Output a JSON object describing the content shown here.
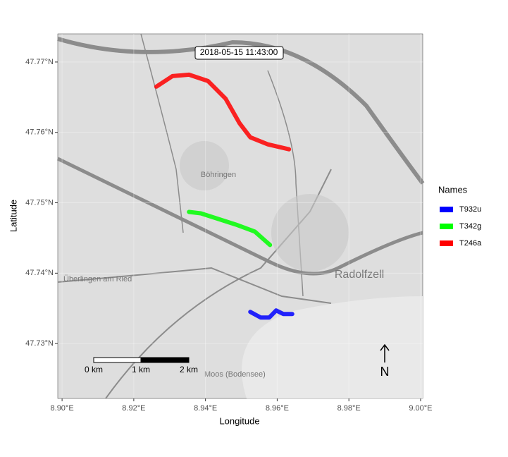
{
  "chart_data": {
    "type": "line",
    "annotation": "2018-05-15 11:43:00",
    "xlabel": "Longitude",
    "ylabel": "Latitude",
    "legend_title": "Names",
    "xlim": [
      8.8988,
      9.0006
    ],
    "ylim": [
      47.7222,
      47.774
    ],
    "xticks": [
      {
        "value": 8.9,
        "label": "8.90°E"
      },
      {
        "value": 8.92,
        "label": "8.92°E"
      },
      {
        "value": 8.94,
        "label": "8.94°E"
      },
      {
        "value": 8.96,
        "label": "8.96°E"
      },
      {
        "value": 8.98,
        "label": "8.98°E"
      },
      {
        "value": 9.0,
        "label": "9.00°E"
      }
    ],
    "yticks": [
      {
        "value": 47.73,
        "label": "47.73°N"
      },
      {
        "value": 47.74,
        "label": "47.74°N"
      },
      {
        "value": 47.75,
        "label": "47.75°N"
      },
      {
        "value": 47.76,
        "label": "47.76°N"
      },
      {
        "value": 47.77,
        "label": "47.77°N"
      }
    ],
    "grid": true,
    "series": [
      {
        "name": "T932u",
        "color": "#0000ff",
        "x": [
          8.9525,
          8.9554,
          8.9578,
          8.9597,
          8.9617,
          8.9642
        ],
        "values": [
          47.7345,
          47.7337,
          47.7337,
          47.7347,
          47.7342,
          47.7342
        ]
      },
      {
        "name": "T342g",
        "color": "#00ff00",
        "x": [
          8.9354,
          8.9387,
          8.9436,
          8.9485,
          8.9538,
          8.958
        ],
        "values": [
          47.7487,
          47.7485,
          47.7477,
          47.7469,
          47.7459,
          47.744
        ]
      },
      {
        "name": "T246a",
        "color": "#ff0000",
        "x": [
          8.9263,
          8.9308,
          8.9354,
          8.9407,
          8.9456,
          8.9495,
          8.9525,
          8.9574,
          8.9633
        ],
        "values": [
          47.7665,
          47.768,
          47.7682,
          47.7673,
          47.7648,
          47.7613,
          47.7593,
          47.7583,
          47.7576
        ]
      }
    ],
    "scale_bar": [
      "0 km",
      "1 km",
      "2 km"
    ],
    "north": "N",
    "place_names": [
      "Radolfzell",
      "Böhringen",
      "Überlingen am Ried",
      "Moos (Bodensee)"
    ]
  }
}
